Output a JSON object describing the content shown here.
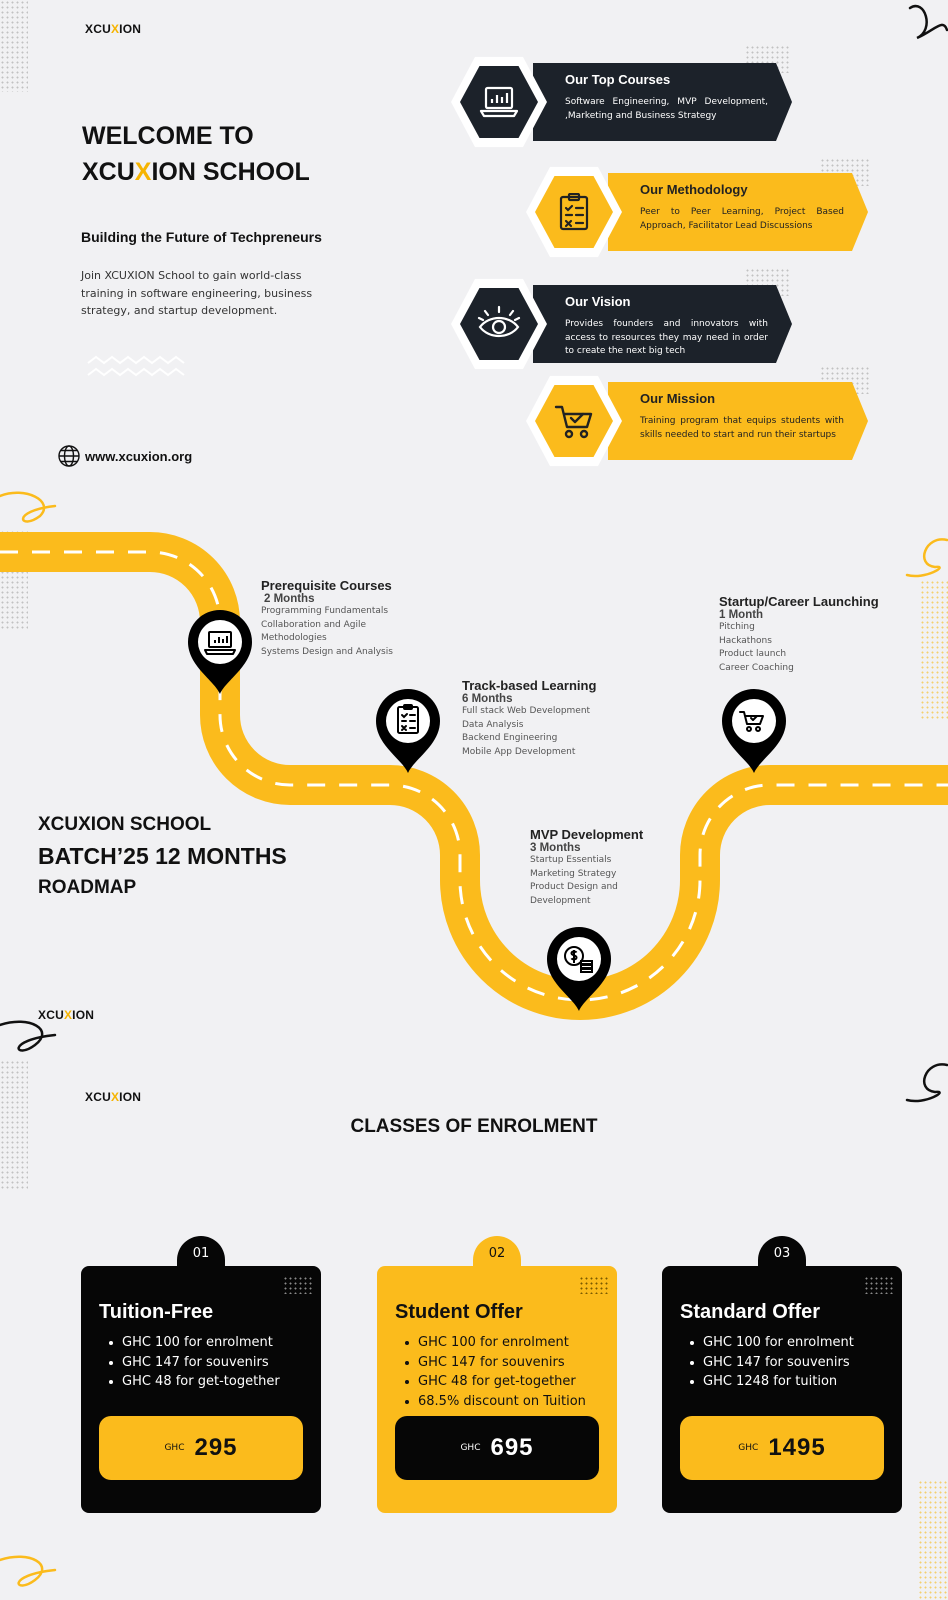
{
  "colors": {
    "accent": "#fbbb1c",
    "dark": "#1c222a",
    "background": "#f1f1f3"
  },
  "logo": {
    "pre": "XCU",
    "x": "X",
    "post": "ION"
  },
  "hero": {
    "title_line1": "WELCOME TO",
    "title_pre": "XCU",
    "title_x": "X",
    "title_post": "ION SCHOOL",
    "subtitle": "Building the Future of Techpreneurs",
    "description": "Join XCUXION School to gain world-class training in software engineering, business strategy, and startup development.",
    "website": "www.xcuxion.org",
    "website_icon": "globe-icon"
  },
  "features": [
    {
      "title": "Our Top Courses",
      "text": "Software Engineering, MVP Development, ,Marketing and Business Strategy",
      "icon": "laptop-chart-icon"
    },
    {
      "title": "Our Methodology",
      "text": "Peer to Peer Learning, Project Based Approach, Facilitator Lead Discussions",
      "icon": "checklist-icon"
    },
    {
      "title": "Our Vision",
      "text": "Provides founders and innovators with access to resources they may need in order to create the next big tech",
      "icon": "eye-icon"
    },
    {
      "title": "Our Mission",
      "text": "Training program that equips students with skills needed to start and run their startups",
      "icon": "shopping-cart-icon"
    }
  ],
  "roadmap": {
    "heading_line1": "XCUXION SCHOOL",
    "heading_line2": "BATCH’25 12 MONTHS",
    "heading_line3": "ROADMAP",
    "stages": [
      {
        "title": "Prerequisite Courses",
        "duration": "2 Months",
        "items": [
          "Programming Fundamentals",
          "Collaboration and Agile",
          "Methodologies",
          "Systems Design and Analysis"
        ],
        "icon": "laptop-chart-icon"
      },
      {
        "title": "Track-based Learning",
        "duration": "6 Months",
        "items": [
          "Full stack Web Development",
          "Data Analysis",
          "Backend Engineering",
          "Mobile App Development"
        ],
        "icon": "checklist-icon"
      },
      {
        "title": "MVP Development",
        "duration": "3 Months",
        "items": [
          "Startup Essentials",
          "Marketing Strategy",
          "Product Design and",
          "Development"
        ],
        "icon": "money-coins-icon"
      },
      {
        "title": "Startup/Career Launching",
        "duration": "1 Month",
        "items": [
          "Pitching",
          "Hackathons",
          "Product launch",
          "Career Coaching"
        ],
        "icon": "shopping-cart-icon"
      }
    ]
  },
  "enrolment": {
    "heading": "CLASSES OF ENROLMENT",
    "classes": [
      {
        "number": "01",
        "title": "Tuition-Free",
        "items": [
          "GHC 100 for enrolment",
          "GHC 147 for souvenirs",
          "GHC 48 for get-together"
        ],
        "currency": "GHC",
        "price": "295"
      },
      {
        "number": "02",
        "title": "Student Offer",
        "items": [
          "GHC 100 for enrolment",
          "GHC 147 for souvenirs",
          "GHC 48 for get-together",
          "68.5% discount on Tuition"
        ],
        "currency": "GHC",
        "price": "695"
      },
      {
        "number": "03",
        "title": "Standard Offer",
        "items": [
          "GHC 100 for enrolment",
          "GHC 147 for souvenirs",
          "GHC 1248 for tuition"
        ],
        "currency": "GHC",
        "price": "1495"
      }
    ]
  }
}
